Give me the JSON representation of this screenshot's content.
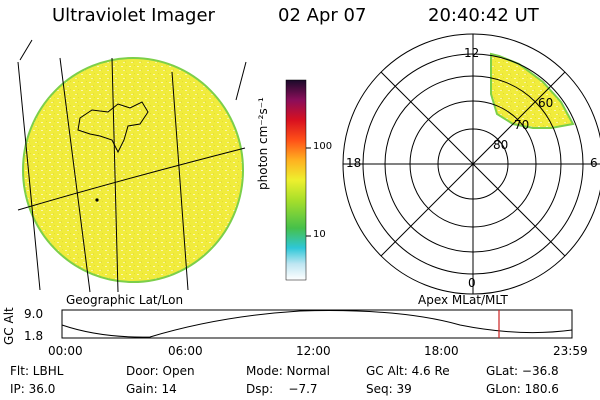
{
  "header": {
    "title": "Ultraviolet Imager",
    "date": "02 Apr 07",
    "time": "20:40:42 UT"
  },
  "colorbar": {
    "label_html": "photon cm⁻²s⁻¹",
    "ticks": [
      "100",
      "10"
    ]
  },
  "left_panel": {
    "caption": "Geographic Lat/Lon"
  },
  "right_panel": {
    "caption": "Apex MLat/MLT",
    "mlt_labels": {
      "top": "12",
      "left": "18",
      "right": "6",
      "bottom": "0"
    },
    "lat_labels": [
      "80",
      "70",
      "60"
    ]
  },
  "altitude_plot": {
    "ylabel": "GC Alt",
    "yticks": [
      "9.0",
      "1.8"
    ],
    "xticks": [
      "00:00",
      "06:00",
      "12:00",
      "18:00",
      "23:59"
    ]
  },
  "info": {
    "row1": {
      "flt": "Flt: LBHL",
      "door": "Door: Open",
      "mode": "Mode: Normal",
      "gcalt": "GC Alt: 4.6 Re",
      "glat": "GLat: −36.8"
    },
    "row2": {
      "ip": "IP: 36.0",
      "gain": "Gain: 14",
      "dsp": "Dsp:    −7.7",
      "seq": "Seq: 39",
      "glon": "GLon: 180.6"
    }
  },
  "colors": {
    "image_fill": "#f2ee3a",
    "limb": "#7ccf4a",
    "redline": "#cc2222"
  }
}
